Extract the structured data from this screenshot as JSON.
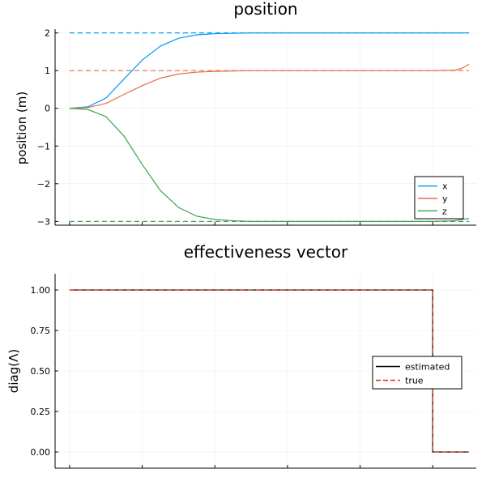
{
  "chart_data": [
    {
      "type": "line",
      "title": "position",
      "ylabel": "position (m)",
      "xlabel": "",
      "ylim": [
        -3.1,
        2.1
      ],
      "xlim": [
        -0.2,
        5.6
      ],
      "yticks": [
        2,
        1,
        0,
        -1,
        -2,
        -3
      ],
      "ytick_labels": [
        "2",
        "1",
        "0",
        "−1",
        "−2",
        "−3"
      ],
      "xticks": [
        0,
        1,
        2,
        3,
        4,
        5
      ],
      "grid": true,
      "legend_placement": "bottom-right",
      "series": [
        {
          "name": "x",
          "color": "#009AFA",
          "style": "solid",
          "x": [
            0,
            0.25,
            0.5,
            0.75,
            1.0,
            1.25,
            1.5,
            1.75,
            2.0,
            2.5,
            3,
            4,
            5,
            5.5
          ],
          "y": [
            0,
            0.04,
            0.27,
            0.78,
            1.28,
            1.65,
            1.86,
            1.95,
            1.98,
            2.0,
            2.0,
            2.0,
            2.0,
            2.0
          ]
        },
        {
          "name": "y",
          "color": "#E36F47",
          "style": "solid",
          "x": [
            0,
            0.25,
            0.5,
            0.75,
            1.0,
            1.25,
            1.5,
            1.75,
            2.0,
            2.5,
            3,
            4,
            5,
            5.3,
            5.4,
            5.5
          ],
          "y": [
            0,
            0.02,
            0.13,
            0.37,
            0.6,
            0.8,
            0.91,
            0.96,
            0.98,
            1.0,
            1.0,
            1.0,
            1.0,
            1.01,
            1.06,
            1.17
          ]
        },
        {
          "name": "z",
          "color": "#3EA44E",
          "style": "solid",
          "x": [
            0,
            0.25,
            0.5,
            0.75,
            1.0,
            1.25,
            1.5,
            1.75,
            2.0,
            2.25,
            2.5,
            3,
            4,
            5,
            5.3,
            5.5
          ],
          "y": [
            0,
            -0.03,
            -0.22,
            -0.74,
            -1.49,
            -2.18,
            -2.63,
            -2.86,
            -2.95,
            -2.98,
            -3.0,
            -3.0,
            -3.0,
            -3.0,
            -2.98,
            -2.92
          ]
        },
        {
          "name": "",
          "color": "#009AFA",
          "style": "dashed",
          "x": [
            0,
            5.5
          ],
          "y": [
            2,
            2
          ]
        },
        {
          "name": "",
          "color": "#E36F47",
          "style": "dashed",
          "x": [
            0,
            5.5
          ],
          "y": [
            1,
            1
          ]
        },
        {
          "name": "",
          "color": "#3EA44E",
          "style": "dashed",
          "x": [
            0,
            5.5
          ],
          "y": [
            -3,
            -3
          ]
        }
      ],
      "legend": [
        {
          "name": "x",
          "color": "#009AFA",
          "style": "solid"
        },
        {
          "name": "y",
          "color": "#E36F47",
          "style": "solid"
        },
        {
          "name": "z",
          "color": "#3EA44E",
          "style": "solid"
        }
      ]
    },
    {
      "type": "line",
      "title": "effectiveness vector",
      "ylabel": "diag(Λ)",
      "xlabel": "",
      "ylim": [
        -0.1,
        1.1
      ],
      "xlim": [
        -0.2,
        5.6
      ],
      "yticks": [
        1.0,
        0.75,
        0.5,
        0.25,
        0.0
      ],
      "ytick_labels": [
        "1.00",
        "0.75",
        "0.50",
        "0.25",
        "0.00"
      ],
      "xticks": [
        0,
        1,
        2,
        3,
        4,
        5
      ],
      "grid": true,
      "legend_placement": "right",
      "series": [
        {
          "name": "estimated",
          "color": "#000000",
          "style": "solid",
          "x": [
            0,
            5.0,
            5.0,
            5.5
          ],
          "y": [
            1,
            1,
            0,
            0
          ]
        },
        {
          "name": "true",
          "color": "#E5301A",
          "style": "dashed",
          "x": [
            0,
            5.0,
            5.0,
            5.5
          ],
          "y": [
            1,
            1,
            0,
            0
          ]
        }
      ],
      "legend": [
        {
          "name": "estimated",
          "color": "#000000",
          "style": "solid"
        },
        {
          "name": "true",
          "color": "#E5301A",
          "style": "dashed"
        }
      ]
    }
  ]
}
